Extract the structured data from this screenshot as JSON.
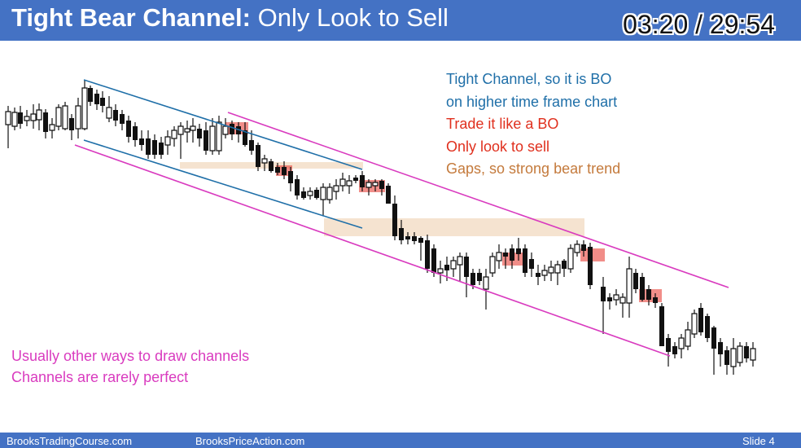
{
  "header": {
    "title_bold": "Tight Bear Channel:",
    "title_rest": "Only Look to Sell",
    "timer": "03:20 / 29:54"
  },
  "notes": [
    {
      "text": "Tight Channel, so it is BO",
      "color": "#1f6fa8"
    },
    {
      "text": "on higher time frame chart",
      "color": "#1f6fa8"
    },
    {
      "text": "Trade it like a BO",
      "color": "#e0301e"
    },
    {
      "text": "Only look to sell",
      "color": "#e0301e"
    },
    {
      "text": "Gaps, so strong bear trend",
      "color": "#c47a3c"
    }
  ],
  "channel_notes": [
    {
      "text": "Usually other ways to draw channels",
      "color": "#d93bbf"
    },
    {
      "text": "Channels are rarely perfect",
      "color": "#d93bbf"
    }
  ],
  "footer": {
    "left": "BrooksTradingCourse.com",
    "center": "BrooksPriceAction.com",
    "right": "Slide  4"
  }
}
